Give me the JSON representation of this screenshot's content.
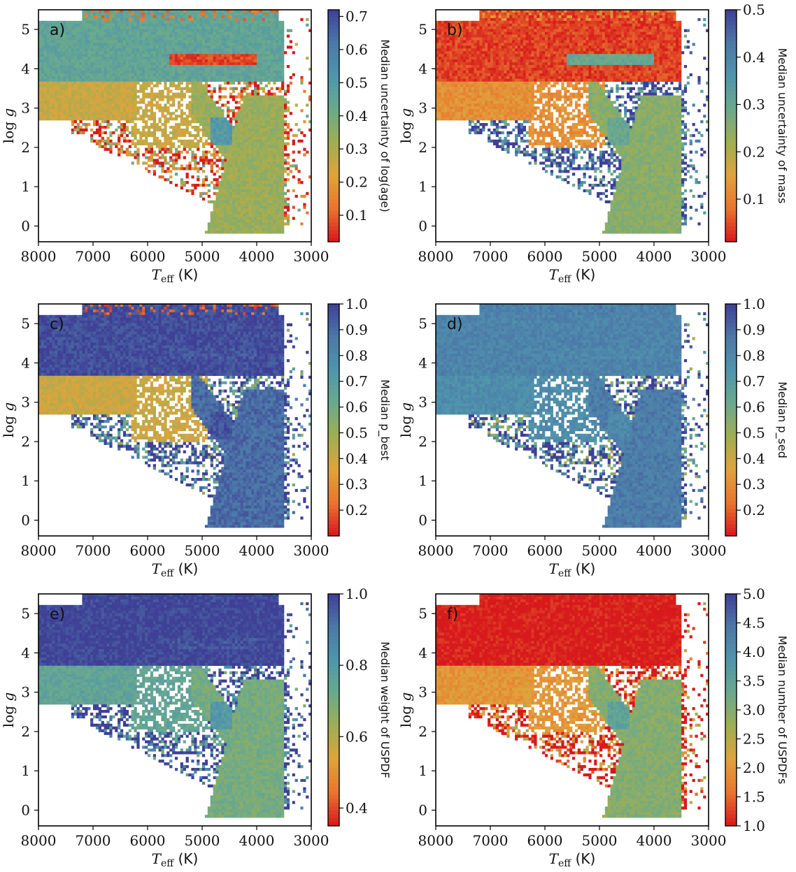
{
  "chart_data": [
    {
      "type": "heatmap",
      "panel_label": "a)",
      "colorbar_label": "Median uncertainty of log(age)",
      "colorbar_range": [
        0.02,
        0.72
      ],
      "colorbar_ticks": [
        "0.1",
        "0.2",
        "0.3",
        "0.4",
        "0.5",
        "0.6",
        "0.7"
      ],
      "colorbar_tick_values": [
        0.1,
        0.2,
        0.3,
        0.4,
        0.5,
        0.6,
        0.7
      ],
      "region_values": {
        "dwarf": 0.45,
        "turnoff": 0.07,
        "subgiant": 0.26,
        "giant": 0.33,
        "red_clump": 0.5,
        "scatter": 0.15,
        "halo": 0.12
      },
      "xlabel": "T_eff (K)",
      "ylabel": "log g",
      "xlim": [
        8000,
        3000
      ],
      "ylim": [
        5.5,
        -0.4
      ],
      "xticks": [
        "8000",
        "7000",
        "6000",
        "5000",
        "4000",
        "3000"
      ],
      "yticks": [
        "0",
        "1",
        "2",
        "3",
        "4",
        "5"
      ]
    },
    {
      "type": "heatmap",
      "panel_label": "b)",
      "colorbar_label": "Median uncertainty of mass",
      "colorbar_range": [
        0.01,
        0.5
      ],
      "colorbar_ticks": [
        "0.1",
        "0.2",
        "0.3",
        "0.4",
        "0.5"
      ],
      "colorbar_tick_values": [
        0.1,
        0.2,
        0.3,
        0.4,
        0.5
      ],
      "region_values": {
        "dwarf": 0.04,
        "turnoff": 0.3,
        "subgiant": 0.12,
        "giant": 0.25,
        "red_clump": 0.3,
        "scatter": 0.48,
        "halo": 0.12
      },
      "xlabel": "T_eff (K)",
      "ylabel": "log g",
      "xlim": [
        8000,
        3000
      ],
      "ylim": [
        5.5,
        -0.4
      ],
      "xticks": [
        "8000",
        "7000",
        "6000",
        "5000",
        "4000",
        "3000"
      ],
      "yticks": [
        "0",
        "1",
        "2",
        "3",
        "4",
        "5"
      ]
    },
    {
      "type": "heatmap",
      "panel_label": "c)",
      "colorbar_label": "Median p_best",
      "colorbar_range": [
        0.1,
        1.0
      ],
      "colorbar_ticks": [
        "0.2",
        "0.3",
        "0.4",
        "0.5",
        "0.6",
        "0.7",
        "0.8",
        "0.9",
        "1.0"
      ],
      "colorbar_tick_values": [
        0.2,
        0.3,
        0.4,
        0.5,
        0.6,
        0.7,
        0.8,
        0.9,
        1.0
      ],
      "region_values": {
        "dwarf": 0.97,
        "turnoff": 0.95,
        "subgiant": 0.4,
        "giant": 0.9,
        "red_clump": 0.95,
        "scatter": 0.9,
        "halo": 0.2
      },
      "xlabel": "T_eff (K)",
      "ylabel": "log g",
      "xlim": [
        8000,
        3000
      ],
      "ylim": [
        5.5,
        -0.4
      ],
      "xticks": [
        "8000",
        "7000",
        "6000",
        "5000",
        "4000",
        "3000"
      ],
      "yticks": [
        "0",
        "1",
        "2",
        "3",
        "4",
        "5"
      ]
    },
    {
      "type": "heatmap",
      "panel_label": "d)",
      "colorbar_label": "Median p_sed",
      "colorbar_range": [
        0.1,
        1.0
      ],
      "colorbar_ticks": [
        "0.2",
        "0.3",
        "0.4",
        "0.5",
        "0.6",
        "0.7",
        "0.8",
        "0.9",
        "1.0"
      ],
      "colorbar_tick_values": [
        0.2,
        0.3,
        0.4,
        0.5,
        0.6,
        0.7,
        0.8,
        0.9,
        1.0
      ],
      "region_values": {
        "dwarf": 0.82,
        "turnoff": 0.8,
        "subgiant": 0.78,
        "giant": 0.85,
        "red_clump": 0.8,
        "scatter": 0.85,
        "halo": 0.85
      },
      "xlabel": "T_eff (K)",
      "ylabel": "log g",
      "xlim": [
        8000,
        3000
      ],
      "ylim": [
        5.5,
        -0.4
      ],
      "xticks": [
        "8000",
        "7000",
        "6000",
        "5000",
        "4000",
        "3000"
      ],
      "yticks": [
        "0",
        "1",
        "2",
        "3",
        "4",
        "5"
      ]
    },
    {
      "type": "heatmap",
      "panel_label": "e)",
      "colorbar_label": "Median weight of USPDF",
      "colorbar_range": [
        0.35,
        1.0
      ],
      "colorbar_ticks": [
        "0.4",
        "0.6",
        "0.8",
        "1.0"
      ],
      "colorbar_tick_values": [
        0.4,
        0.6,
        0.8,
        1.0
      ],
      "region_values": {
        "dwarf": 0.99,
        "turnoff": 0.97,
        "subgiant": 0.75,
        "giant": 0.7,
        "red_clump": 0.8,
        "scatter": 0.98,
        "halo": 0.98
      },
      "xlabel": "T_eff (K)",
      "ylabel": "log g",
      "xlim": [
        8000,
        3000
      ],
      "ylim": [
        5.5,
        -0.4
      ],
      "xticks": [
        "8000",
        "7000",
        "6000",
        "5000",
        "4000",
        "3000"
      ],
      "yticks": [
        "0",
        "1",
        "2",
        "3",
        "4",
        "5"
      ]
    },
    {
      "type": "heatmap",
      "panel_label": "f)",
      "colorbar_label": "Median number of USPDFs",
      "colorbar_range": [
        1.0,
        5.0
      ],
      "colorbar_ticks": [
        "1.0",
        "1.5",
        "2.0",
        "2.5",
        "3.0",
        "3.5",
        "4.0",
        "4.5",
        "5.0"
      ],
      "colorbar_tick_values": [
        1.0,
        1.5,
        2.0,
        2.5,
        3.0,
        3.5,
        4.0,
        4.5,
        5.0
      ],
      "region_values": {
        "dwarf": 1.0,
        "turnoff": 1.0,
        "subgiant": 2.0,
        "giant": 3.0,
        "red_clump": 3.5,
        "scatter": 1.0,
        "halo": 1.0
      },
      "xlabel": "T_eff (K)",
      "ylabel": "log g",
      "xlim": [
        8000,
        3000
      ],
      "ylim": [
        5.5,
        -0.4
      ],
      "xticks": [
        "8000",
        "7000",
        "6000",
        "5000",
        "4000",
        "3000"
      ],
      "yticks": [
        "0",
        "1",
        "2",
        "3",
        "4",
        "5"
      ]
    }
  ],
  "colors": {
    "colormap": [
      "#d7191c",
      "#e8752f",
      "#e0a33c",
      "#9fae52",
      "#6aaa8c",
      "#4f95ac",
      "#4c78a8",
      "#3f3f96"
    ]
  }
}
